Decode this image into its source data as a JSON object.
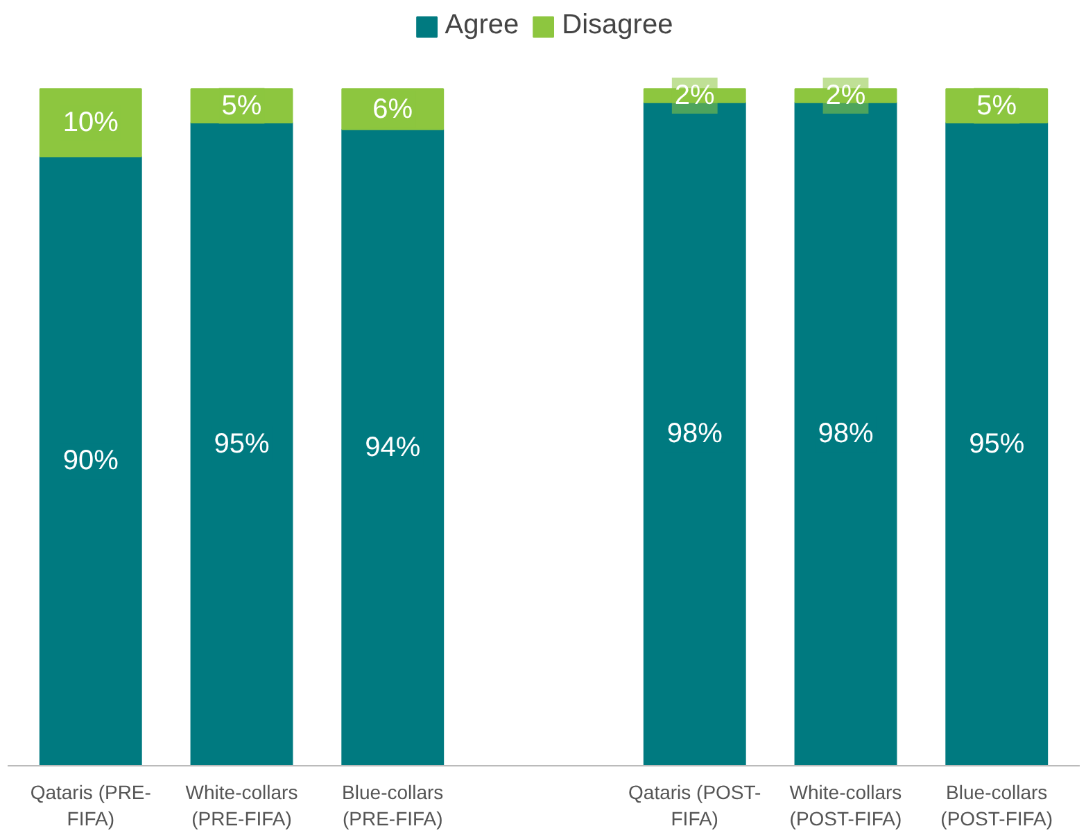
{
  "chart_data": {
    "type": "bar",
    "stacked": true,
    "legend": "top",
    "grid": false,
    "tick_labels": "x",
    "categories": [
      "Qataris (PRE-\nFIFA)",
      "White-collars\n(PRE-FIFA)",
      "Blue-collars\n(PRE-FIFA)",
      null,
      "Qataris (POST-\nFIFA)",
      "White-collars\n(POST-FIFA)",
      "Blue-collars\n(POST-FIFA)"
    ],
    "series": [
      {
        "name": "Agree",
        "color": "#007a80",
        "values": [
          90,
          95,
          94,
          null,
          98,
          98,
          95
        ],
        "value_labels": [
          "90%",
          "95%",
          "94%",
          null,
          "98%",
          "98%",
          "95%"
        ]
      },
      {
        "name": "Disagree",
        "color": "#8dc63f",
        "values": [
          10,
          5,
          6,
          null,
          2,
          2,
          5
        ],
        "value_labels": [
          "10%",
          "5%",
          "6%",
          null,
          "2%",
          "2%",
          "5%"
        ]
      }
    ]
  }
}
